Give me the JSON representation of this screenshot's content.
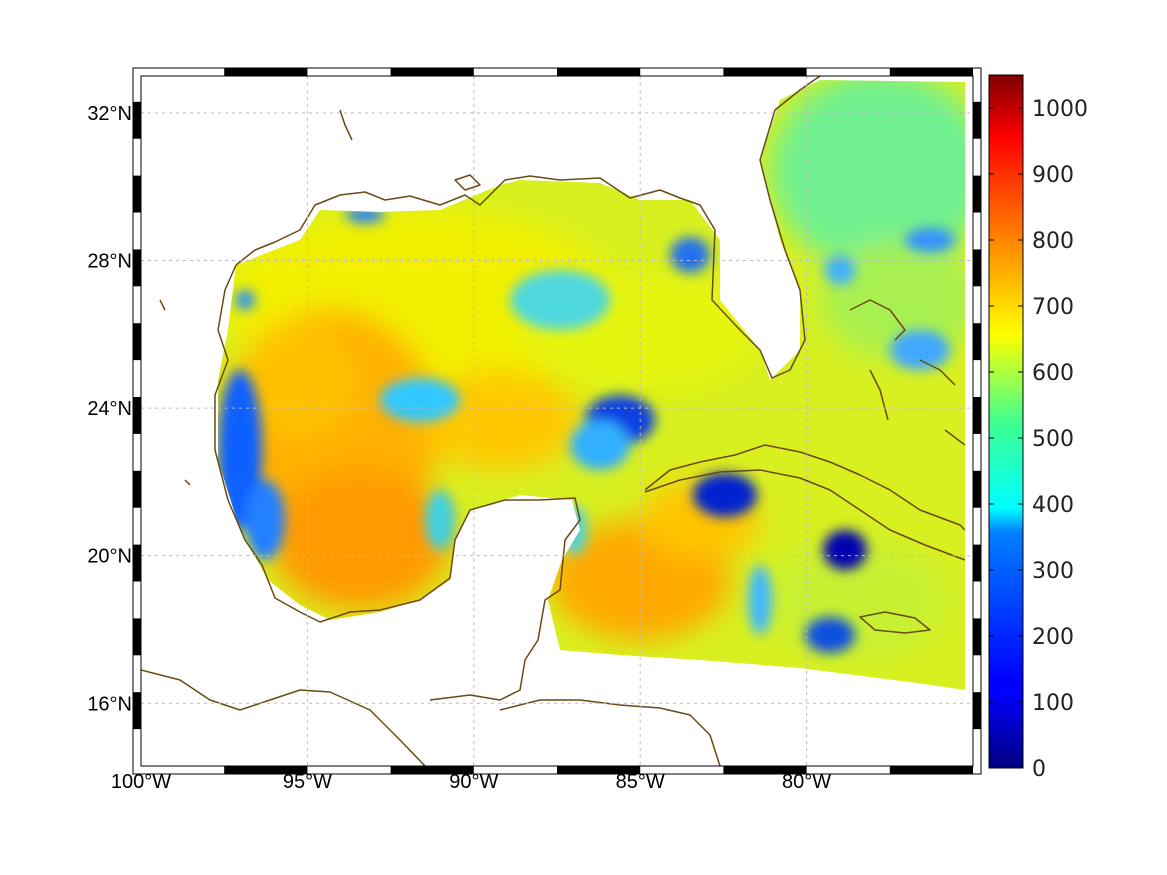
{
  "map": {
    "lon_range": [
      -100,
      -75
    ],
    "lat_range": [
      14.3,
      33
    ],
    "lon_ticks": [
      {
        "value": -100,
        "label": "100°W"
      },
      {
        "value": -95,
        "label": "95°W"
      },
      {
        "value": -90,
        "label": "90°W"
      },
      {
        "value": -85,
        "label": "85°W"
      },
      {
        "value": -80,
        "label": "80°W"
      }
    ],
    "lat_ticks": [
      {
        "value": 32,
        "label": "32°N"
      },
      {
        "value": 28,
        "label": "28°N"
      },
      {
        "value": 24,
        "label": "24°N"
      },
      {
        "value": 20,
        "label": "20°N"
      },
      {
        "value": 16,
        "label": "16°N"
      }
    ],
    "grid": true,
    "colors": {
      "coastline": "#6b4a12",
      "land": "#ffffff",
      "grid": "#bbbbbb"
    }
  },
  "colorbar": {
    "colormap": "jet",
    "range": [
      0,
      1050
    ],
    "ticks": [
      {
        "value": 0,
        "label": "0"
      },
      {
        "value": 100,
        "label": "100"
      },
      {
        "value": 200,
        "label": "200"
      },
      {
        "value": 300,
        "label": "300"
      },
      {
        "value": 400,
        "label": "400"
      },
      {
        "value": 500,
        "label": "500"
      },
      {
        "value": 600,
        "label": "600"
      },
      {
        "value": 700,
        "label": "700"
      },
      {
        "value": 800,
        "label": "800"
      },
      {
        "value": 900,
        "label": "900"
      },
      {
        "value": 1000,
        "label": "1000"
      }
    ]
  }
}
